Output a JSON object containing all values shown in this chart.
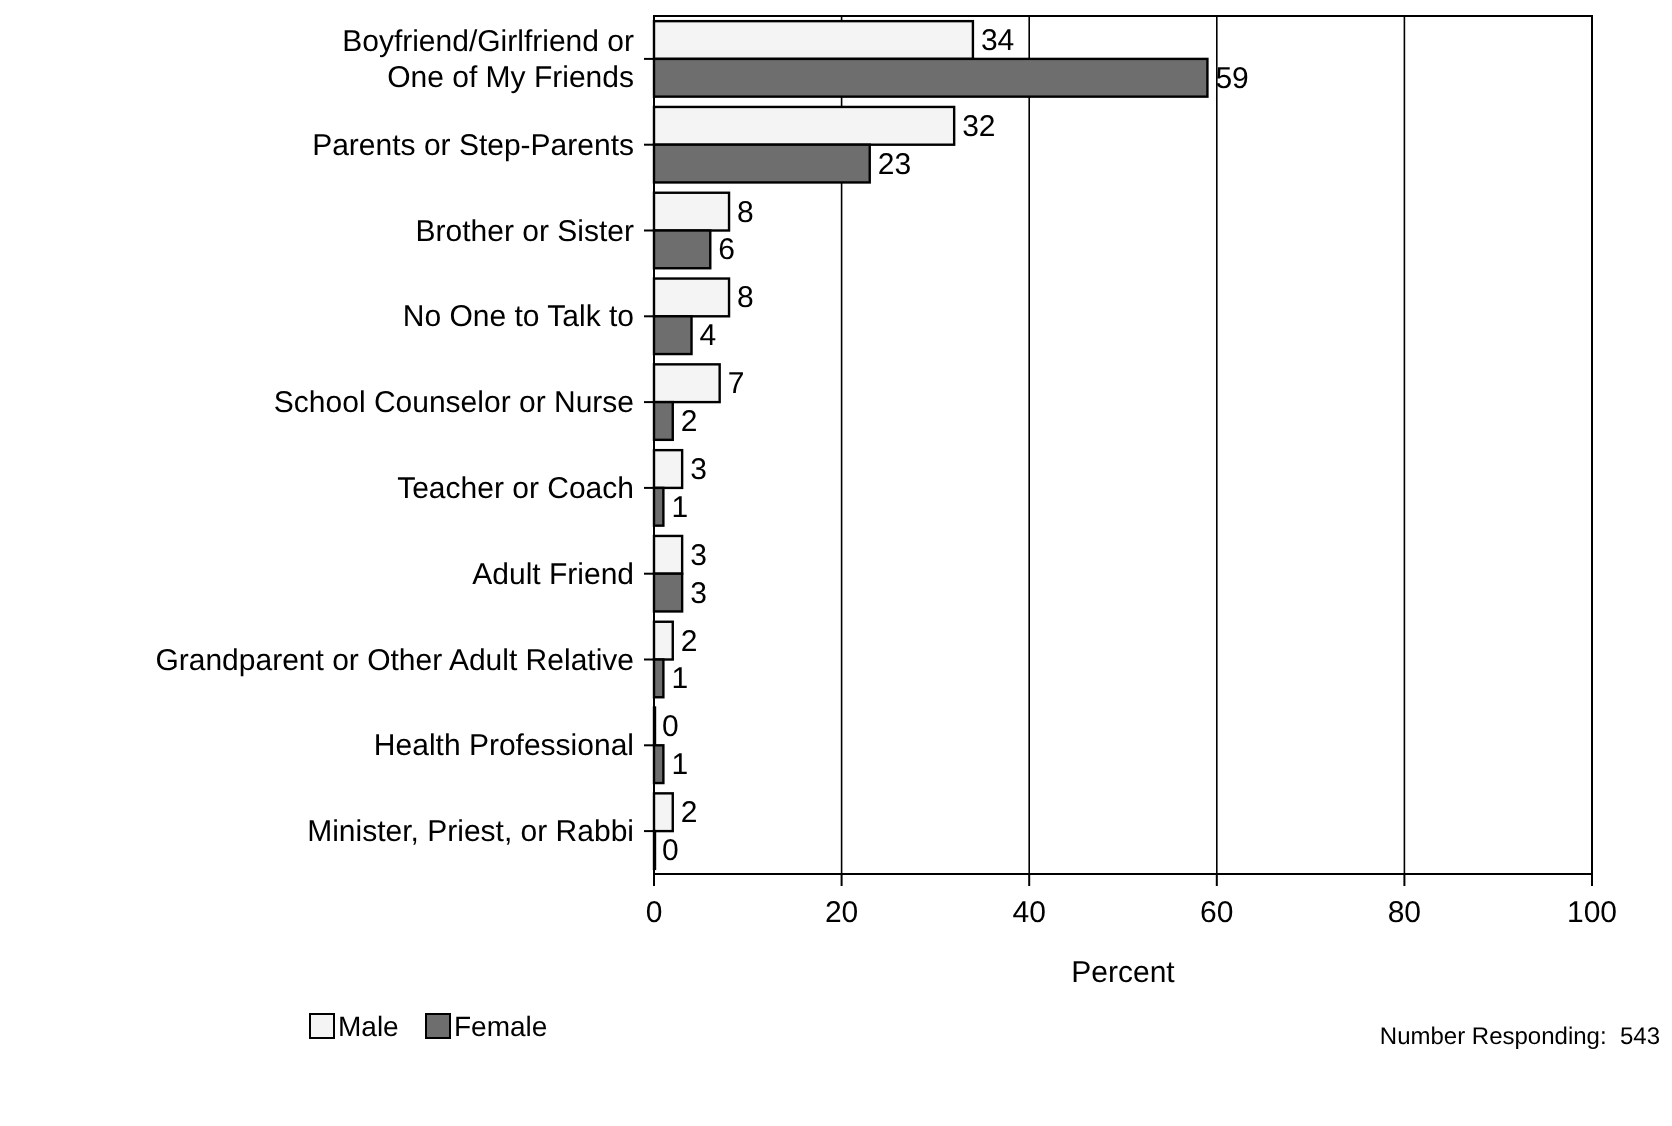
{
  "chart_data": {
    "type": "bar",
    "orientation": "horizontal",
    "categories": [
      "Boyfriend/Girlfriend or\nOne of My Friends",
      "Parents or Step-Parents",
      "Brother or Sister",
      "No One to Talk to",
      "School Counselor or Nurse",
      "Teacher or Coach",
      "Adult Friend",
      "Grandparent or Other Adult Relative",
      "Health Professional",
      "Minister, Priest, or Rabbi"
    ],
    "series": [
      {
        "name": "Male",
        "color": "#f4f4f4",
        "values": [
          34,
          32,
          8,
          8,
          7,
          3,
          3,
          2,
          0,
          2
        ]
      },
      {
        "name": "Female",
        "color": "#6e6e6e",
        "values": [
          59,
          23,
          6,
          4,
          2,
          1,
          3,
          1,
          1,
          0
        ]
      }
    ],
    "xlabel": "Percent",
    "xlim": [
      0,
      100
    ],
    "xticks": [
      0,
      20,
      40,
      60,
      80,
      100
    ],
    "grid": "x",
    "data_labels": true,
    "legend": "bottom left",
    "annotations": [
      "Number Responding:  543"
    ]
  }
}
